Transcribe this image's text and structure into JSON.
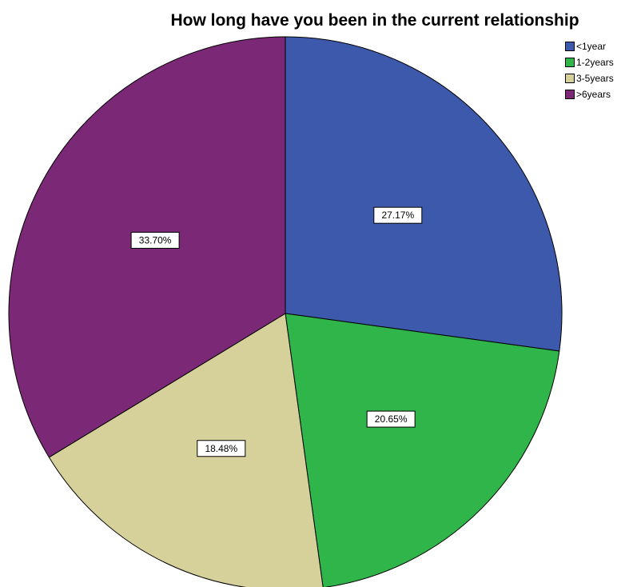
{
  "chart_data": {
    "type": "pie",
    "title": "How long have you been in the current relationship",
    "categories": [
      "<1year",
      "1-2years",
      "3-5years",
      ">6years"
    ],
    "values": [
      27.17,
      20.65,
      18.48,
      33.7
    ],
    "data_labels": [
      "27.17%",
      "20.65%",
      "18.48%",
      "33.70%"
    ],
    "colors": [
      "#3d59ab",
      "#2fb54a",
      "#d6d09b",
      "#7b2876"
    ],
    "legend_position": "top-right",
    "start_angle": "12 o'clock",
    "direction": "clockwise"
  }
}
